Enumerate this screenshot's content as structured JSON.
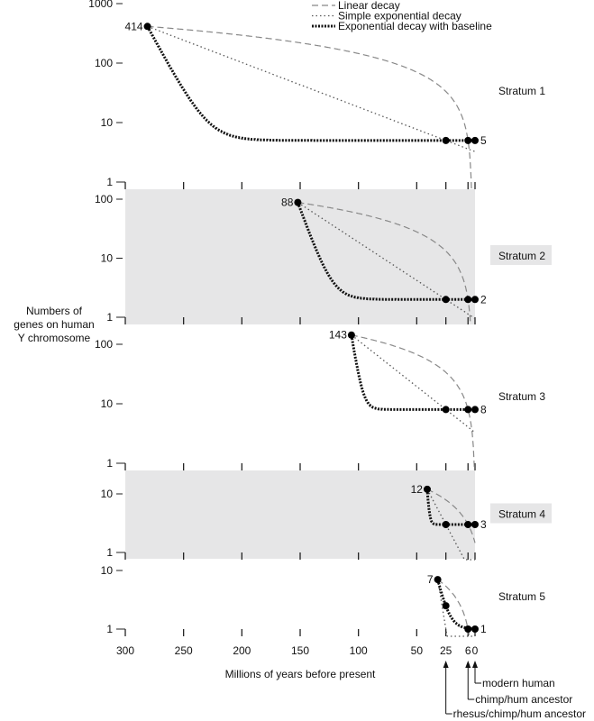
{
  "chart_data": {
    "type": "line",
    "xlabel": "Millions of years before present",
    "ylabel": [
      "Numbers of",
      "genes on human",
      "Y chromosome"
    ],
    "x_ticks": [
      300,
      250,
      200,
      150,
      100,
      50,
      25,
      6,
      0
    ],
    "xlim": [
      300,
      0
    ],
    "yscale": "log",
    "legend": {
      "placement": "top-right",
      "entries": [
        "Linear decay",
        "Simple exponential decay",
        "Exponential decay with baseline"
      ]
    },
    "annotations": [
      {
        "x": 0,
        "label": "modern human"
      },
      {
        "x": 6,
        "label": "chimp/hum ancestor"
      },
      {
        "x": 25,
        "label": "rhesus/chimp/hum ancestor"
      }
    ],
    "strata": [
      {
        "name": "Stratum 1",
        "shaded": false,
        "y_ticks": [
          "1000",
          "100",
          "10",
          "1"
        ],
        "ylim": [
          1,
          1000
        ],
        "start_x": 281,
        "start_value": 414,
        "start_label": "414",
        "end_value": 5,
        "end_label": "5",
        "baseline_tau": 12,
        "points": [
          [
            25,
            5
          ],
          [
            6,
            5
          ],
          [
            0,
            5
          ]
        ]
      },
      {
        "name": "Stratum 2",
        "shaded": true,
        "y_ticks": [
          "100",
          "10",
          "1"
        ],
        "ylim": [
          1,
          100
        ],
        "start_x": 152,
        "start_value": 88,
        "start_label": "88",
        "end_value": 2,
        "end_label": "2",
        "baseline_tau": 8,
        "points": [
          [
            25,
            2
          ],
          [
            6,
            2
          ],
          [
            0,
            2
          ]
        ]
      },
      {
        "name": "Stratum 3",
        "shaded": false,
        "y_ticks": [
          "100",
          "10",
          "1"
        ],
        "ylim": [
          1,
          100
        ],
        "start_x": 106,
        "start_value": 143,
        "start_label": "143",
        "end_value": 8,
        "end_label": "8",
        "baseline_tau": 3.5,
        "points": [
          [
            25,
            8
          ],
          [
            6,
            8
          ],
          [
            0,
            8
          ]
        ]
      },
      {
        "name": "Stratum 4",
        "shaded": true,
        "y_ticks": [
          "10",
          "1"
        ],
        "ylim": [
          1,
          10
        ],
        "start_x": 41,
        "start_value": 12,
        "start_label": "12",
        "end_value": 3,
        "end_label": "3",
        "baseline_tau": 1.2,
        "points": [
          [
            25,
            3
          ],
          [
            6,
            3
          ],
          [
            0,
            3
          ]
        ]
      },
      {
        "name": "Stratum 5",
        "shaded": false,
        "y_ticks": [
          "10",
          "1"
        ],
        "ylim": [
          1,
          10
        ],
        "start_x": 32,
        "start_value": 7,
        "start_label": "7",
        "end_value": 1,
        "end_label": "1",
        "baseline_tau": 5,
        "points": [
          [
            25,
            2.5
          ],
          [
            6,
            1
          ],
          [
            0,
            1
          ]
        ]
      }
    ]
  }
}
